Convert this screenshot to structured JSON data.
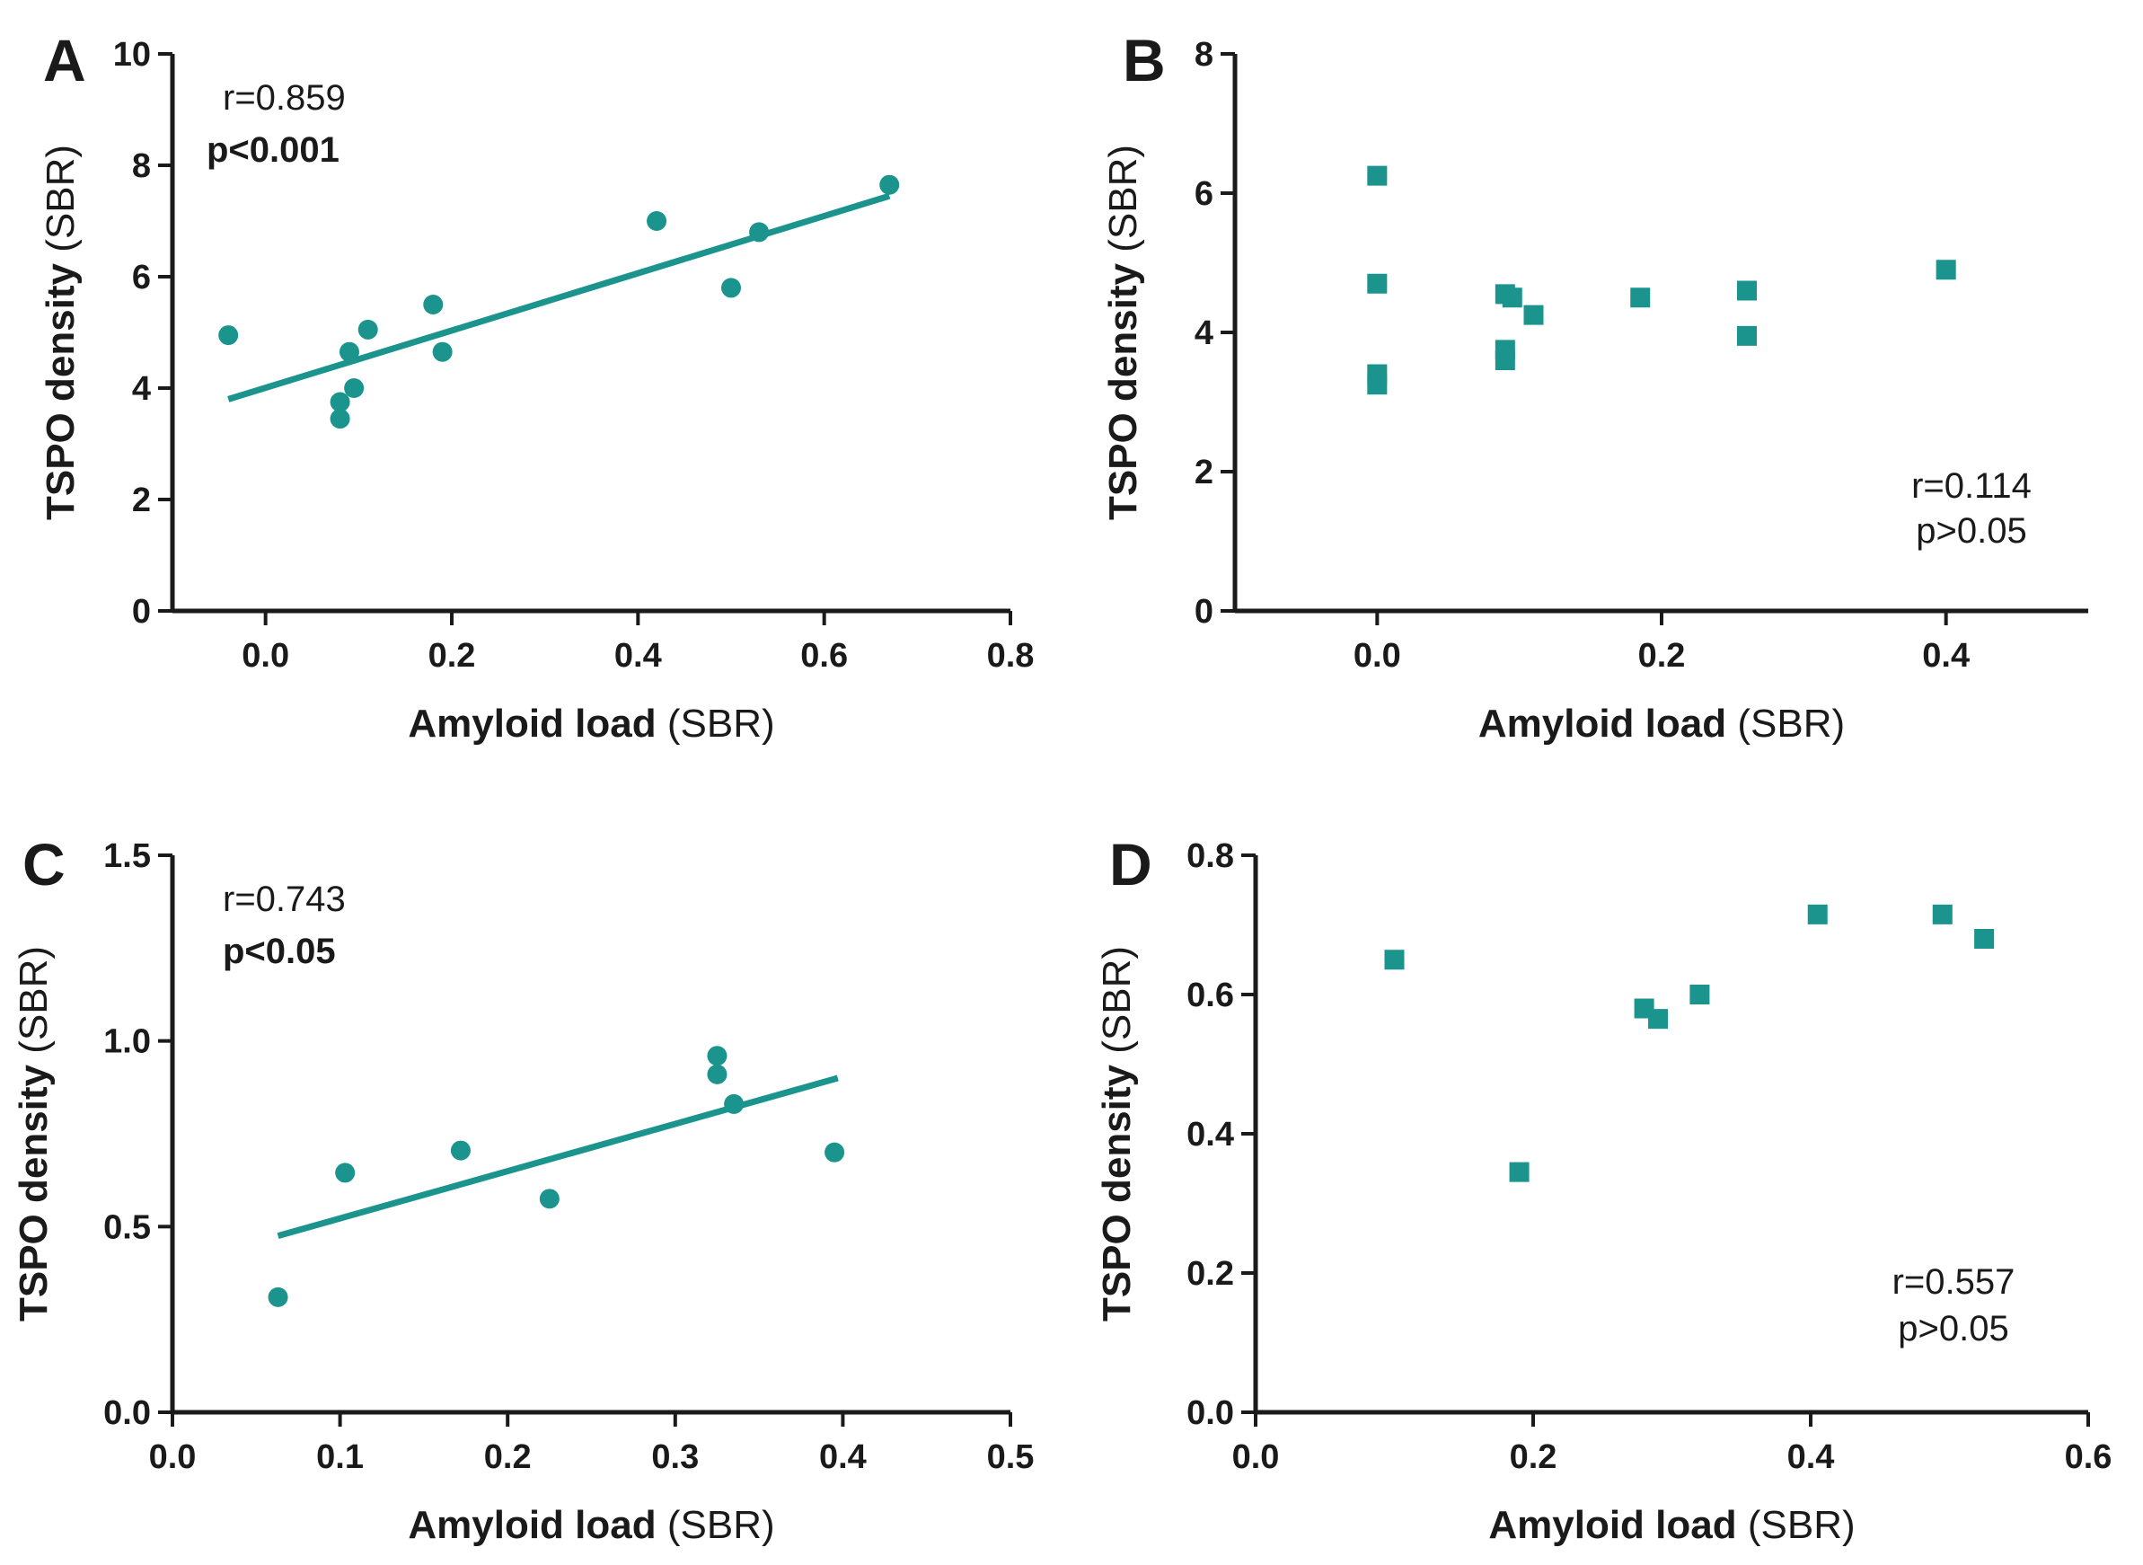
{
  "figure": {
    "accent_color": "#1a948c",
    "axis_color": "#1a1a1a"
  },
  "chart_data": [
    {
      "panel": "A",
      "type": "scatter",
      "marker": "circle",
      "xlabel_bold": "Amyloid load",
      "xlabel_normal": "(SBR)",
      "ylabel_bold": "TSPO density",
      "ylabel_normal": "(SBR)",
      "xlim": [
        -0.1,
        0.8
      ],
      "ylim": [
        0,
        10
      ],
      "xticks": [
        0.0,
        0.2,
        0.4,
        0.6,
        0.8
      ],
      "xtick_labels": [
        "0.0",
        "0.2",
        "0.4",
        "0.6",
        "0.8"
      ],
      "yticks": [
        0,
        2,
        4,
        6,
        8,
        10
      ],
      "ytick_labels": [
        "0",
        "2",
        "4",
        "6",
        "8",
        "10"
      ],
      "points": [
        {
          "x": -0.04,
          "y": 4.95
        },
        {
          "x": 0.08,
          "y": 3.45
        },
        {
          "x": 0.08,
          "y": 3.75
        },
        {
          "x": 0.09,
          "y": 4.65
        },
        {
          "x": 0.095,
          "y": 4.0
        },
        {
          "x": 0.11,
          "y": 5.05
        },
        {
          "x": 0.18,
          "y": 5.5
        },
        {
          "x": 0.19,
          "y": 4.65
        },
        {
          "x": 0.42,
          "y": 7.0
        },
        {
          "x": 0.5,
          "y": 5.8
        },
        {
          "x": 0.53,
          "y": 6.8
        },
        {
          "x": 0.67,
          "y": 7.65
        }
      ],
      "fit_line": {
        "x": [
          -0.04,
          0.67
        ],
        "y": [
          3.8,
          7.45
        ]
      },
      "stat_r": "r=0.859",
      "stat_p": "p<0.001",
      "p_bold": true,
      "stats_position": "top-left"
    },
    {
      "panel": "B",
      "type": "scatter",
      "marker": "square",
      "xlabel_bold": "Amyloid load",
      "xlabel_normal": "(SBR)",
      "ylabel_bold": "TSPO density",
      "ylabel_normal": "(SBR)",
      "xlim": [
        -0.1,
        0.5
      ],
      "ylim": [
        0,
        8
      ],
      "xticks": [
        0.0,
        0.2,
        0.4
      ],
      "xtick_labels": [
        "0.0",
        "0.2",
        "0.4"
      ],
      "yticks": [
        0,
        2,
        4,
        6,
        8
      ],
      "ytick_labels": [
        "0",
        "2",
        "4",
        "6",
        "8"
      ],
      "points": [
        {
          "x": 0.0,
          "y": 6.25
        },
        {
          "x": 0.0,
          "y": 4.7
        },
        {
          "x": 0.0,
          "y": 3.4
        },
        {
          "x": 0.0,
          "y": 3.25
        },
        {
          "x": 0.09,
          "y": 4.55
        },
        {
          "x": 0.095,
          "y": 4.5
        },
        {
          "x": 0.09,
          "y": 3.75
        },
        {
          "x": 0.09,
          "y": 3.6
        },
        {
          "x": 0.11,
          "y": 4.25
        },
        {
          "x": 0.185,
          "y": 4.5
        },
        {
          "x": 0.26,
          "y": 4.6
        },
        {
          "x": 0.26,
          "y": 3.95
        },
        {
          "x": 0.4,
          "y": 4.9
        }
      ],
      "stat_r": "r=0.114",
      "stat_p": "p>0.05",
      "p_bold": false,
      "stats_position": "bottom-right"
    },
    {
      "panel": "C",
      "type": "scatter",
      "marker": "circle",
      "xlabel_bold": "Amyloid load",
      "xlabel_normal": "(SBR)",
      "ylabel_bold": "TSPO density",
      "ylabel_normal": "(SBR)",
      "xlim": [
        0,
        0.5
      ],
      "ylim": [
        0,
        1.5
      ],
      "xticks": [
        0.0,
        0.1,
        0.2,
        0.3,
        0.4,
        0.5
      ],
      "xtick_labels": [
        "0.0",
        "0.1",
        "0.2",
        "0.3",
        "0.4",
        "0.5"
      ],
      "yticks": [
        0,
        0.5,
        1.0,
        1.5
      ],
      "ytick_labels": [
        "0.0",
        "0.5",
        "1.0",
        "1.5"
      ],
      "points": [
        {
          "x": 0.063,
          "y": 0.31
        },
        {
          "x": 0.103,
          "y": 0.645
        },
        {
          "x": 0.172,
          "y": 0.705
        },
        {
          "x": 0.225,
          "y": 0.575
        },
        {
          "x": 0.325,
          "y": 0.96
        },
        {
          "x": 0.325,
          "y": 0.91
        },
        {
          "x": 0.335,
          "y": 0.83
        },
        {
          "x": 0.395,
          "y": 0.7
        }
      ],
      "fit_line": {
        "x": [
          0.063,
          0.397
        ],
        "y": [
          0.475,
          0.9
        ]
      },
      "stat_r": "r=0.743",
      "stat_p": "p<0.05",
      "p_bold": true,
      "stats_position": "top-left"
    },
    {
      "panel": "D",
      "type": "scatter",
      "marker": "square",
      "xlabel_bold": "Amyloid load",
      "xlabel_normal": "(SBR)",
      "ylabel_bold": "TSPO density",
      "ylabel_normal": "(SBR)",
      "xlim": [
        0,
        0.6
      ],
      "ylim": [
        0,
        0.8
      ],
      "xticks": [
        0.0,
        0.2,
        0.4,
        0.6
      ],
      "xtick_labels": [
        "0.0",
        "0.2",
        "0.4",
        "0.6"
      ],
      "yticks": [
        0,
        0.2,
        0.4,
        0.6,
        0.8
      ],
      "ytick_labels": [
        "0.0",
        "0.2",
        "0.4",
        "0.6",
        "0.8"
      ],
      "points": [
        {
          "x": 0.1,
          "y": 0.65
        },
        {
          "x": 0.19,
          "y": 0.345
        },
        {
          "x": 0.28,
          "y": 0.58
        },
        {
          "x": 0.29,
          "y": 0.565
        },
        {
          "x": 0.32,
          "y": 0.6
        },
        {
          "x": 0.405,
          "y": 0.715
        },
        {
          "x": 0.495,
          "y": 0.715
        },
        {
          "x": 0.525,
          "y": 0.68
        }
      ],
      "stat_r": "r=0.557",
      "stat_p": "p>0.05",
      "p_bold": false,
      "stats_position": "bottom-right"
    }
  ]
}
